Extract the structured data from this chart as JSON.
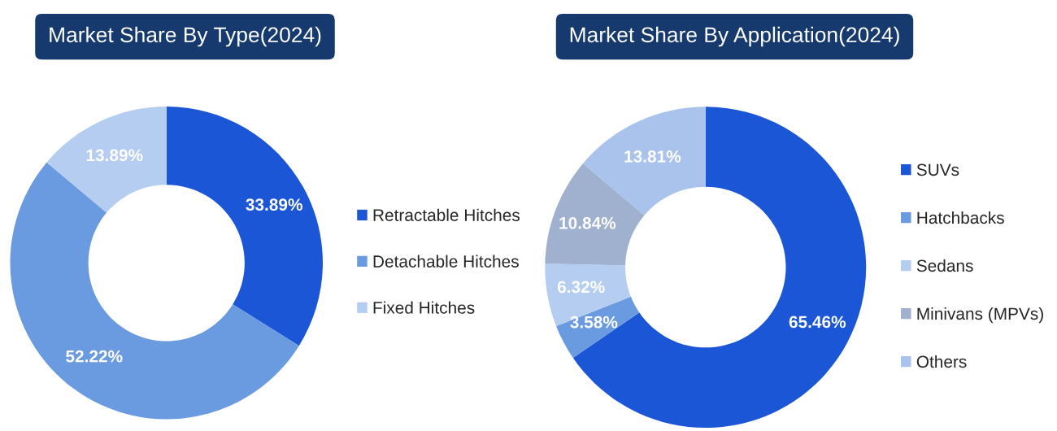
{
  "chart_data": [
    {
      "type": "donut",
      "title": "Market Share By Type(2024)",
      "categories": [
        "Retractable Hitches",
        "Detachable Hitches",
        "Fixed Hitches"
      ],
      "values": [
        33.89,
        52.22,
        13.89
      ],
      "colors": [
        "#1a56d6",
        "#6a9be0",
        "#b5cdf0"
      ],
      "value_labels": [
        "33.89%",
        "52.22%",
        "13.89%"
      ],
      "legend": "right"
    },
    {
      "type": "donut",
      "title": "Market Share By Application(2024)",
      "categories": [
        "SUVs",
        "Hatchbacks",
        "Sedans",
        "Minivans (MPVs)",
        "Others"
      ],
      "values": [
        65.46,
        3.58,
        6.32,
        10.84,
        13.81
      ],
      "colors": [
        "#1a56d6",
        "#6a9be0",
        "#b5cdf0",
        "#9fb1cf",
        "#a9c3ec"
      ],
      "value_labels": [
        "65.46%",
        "3.58%",
        "6.32%",
        "10.84%",
        "13.81%"
      ],
      "legend": "right"
    }
  ]
}
